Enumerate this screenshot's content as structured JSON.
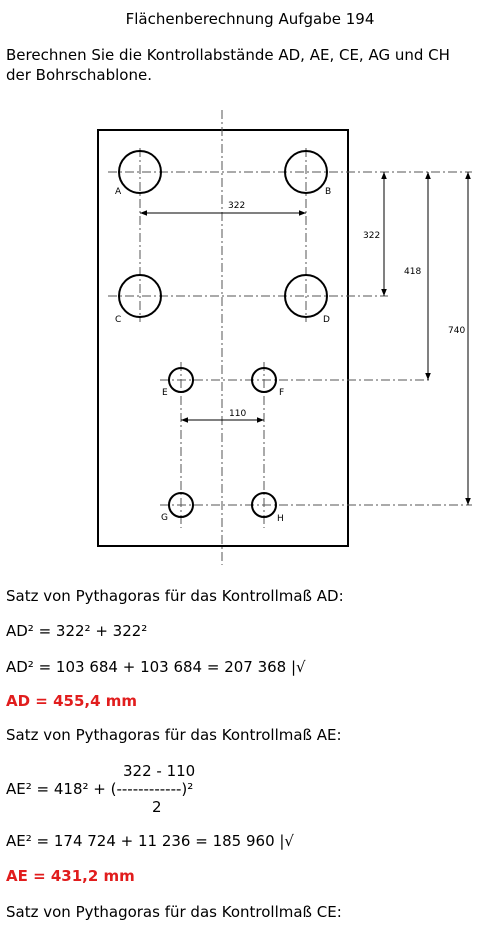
{
  "header": {
    "title": "Flächenberechnung Aufgabe 194"
  },
  "task": {
    "line1": "Berechnen Sie die Kontrollabstände AD, AE, CE, AG und CH",
    "line2": "der Bohrschablone."
  },
  "drawing": {
    "hole_labels": {
      "A": "A",
      "B": "B",
      "C": "C",
      "D": "D",
      "E": "E",
      "F": "F",
      "G": "G",
      "H": "H"
    },
    "dimensions": {
      "ab_width": "322",
      "ac_height": "322",
      "ae_height": "418",
      "ag_height": "740",
      "ef_width": "110"
    }
  },
  "solution": {
    "ad_heading": "Satz von Pythagoras für das Kontrollmaß AD:",
    "ad_eq1": "AD² = 322² + 322²",
    "ad_eq2": "AD² = 103 684 + 103 684 = 207 368 |√",
    "ad_result": "AD = 455,4 mm",
    "ae_heading": "Satz von Pythagoras für das Kontrollmaß AE:",
    "ae_frac_num": "322 - 110",
    "ae_frac_left": "AE² = 418² + (------------)²",
    "ae_frac_den": "2",
    "ae_eq2": "AE² = 174 724 + 11 236 = 185 960 |√",
    "ae_result": "AE = 431,2 mm",
    "ce_heading": "Satz von Pythagoras für das Kontrollmaß CE:"
  },
  "colors": {
    "result": "#e11d1d"
  }
}
